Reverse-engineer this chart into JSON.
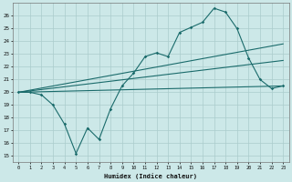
{
  "xlabel": "Humidex (Indice chaleur)",
  "background_color": "#cce8e8",
  "grid_color": "#aacccc",
  "line_color": "#1a6b6b",
  "xlim": [
    -0.5,
    23.5
  ],
  "ylim": [
    14.5,
    27.0
  ],
  "yticks": [
    15,
    16,
    17,
    18,
    19,
    20,
    21,
    22,
    23,
    24,
    25,
    26
  ],
  "xticks": [
    0,
    1,
    2,
    3,
    4,
    5,
    6,
    7,
    8,
    9,
    10,
    11,
    12,
    13,
    14,
    15,
    16,
    17,
    18,
    19,
    20,
    21,
    22,
    23
  ],
  "series1_x": [
    0,
    1,
    2,
    3,
    4,
    5,
    6,
    7,
    8,
    9,
    10,
    11,
    12,
    13,
    14,
    15,
    16,
    17,
    18,
    19,
    20,
    21,
    22,
    23
  ],
  "series1_y": [
    20.0,
    20.0,
    19.8,
    19.0,
    17.5,
    15.2,
    17.2,
    16.3,
    18.7,
    20.5,
    21.5,
    22.8,
    23.1,
    22.8,
    24.7,
    25.1,
    25.5,
    26.6,
    26.3,
    25.0,
    22.7,
    21.0,
    20.3,
    20.5
  ],
  "series2_x": [
    0,
    23
  ],
  "series2_y": [
    20.0,
    20.5
  ],
  "series3_x": [
    0,
    23
  ],
  "series3_y": [
    20.0,
    23.8
  ],
  "series4_x": [
    0,
    23
  ],
  "series4_y": [
    20.0,
    22.5
  ]
}
